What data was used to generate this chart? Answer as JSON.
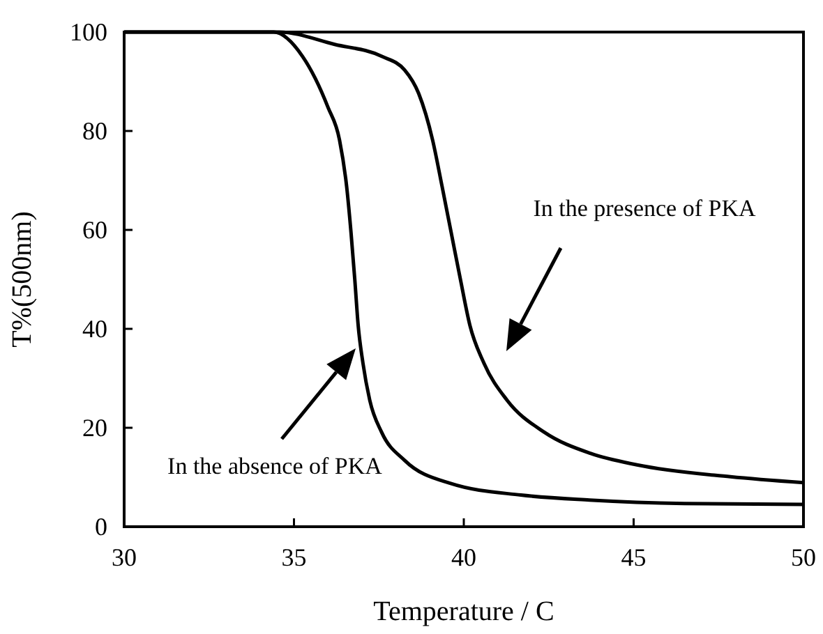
{
  "chart_data": {
    "type": "line",
    "xlabel": "Temperature / C",
    "ylabel": "T%(500nm)",
    "xlim": [
      30,
      50
    ],
    "xticks": [
      30,
      35,
      40,
      45,
      50
    ],
    "ylim": [
      0,
      100
    ],
    "yticks": [
      0,
      20,
      40,
      60,
      80,
      100
    ],
    "grid": false,
    "marker": "none",
    "line_style": "solid",
    "series": [
      {
        "color": "#000000",
        "x": [
          30,
          34.4,
          35.25,
          36.0,
          36.34,
          36.55,
          36.68,
          36.79,
          36.89,
          37.03,
          37.23,
          37.58,
          38.26,
          39.63,
          41.68,
          43.7,
          46.5,
          50
        ],
        "values": [
          100,
          100,
          95.1,
          84.8,
          78.2,
          68.8,
          59.4,
          50,
          40.7,
          33.1,
          25.6,
          19.1,
          13.4,
          8.7,
          6.4,
          5.4,
          4.7,
          4.5
        ]
      },
      {
        "color": "#000000",
        "x": [
          30,
          34.56,
          36.2,
          37.58,
          38.26,
          38.67,
          39.08,
          39.36,
          39.63,
          39.9,
          40.18,
          40.59,
          41.27,
          42.37,
          43.74,
          45.1,
          47.85,
          50
        ],
        "values": [
          100,
          100,
          97.5,
          95.1,
          92.3,
          87.6,
          78.2,
          68.8,
          59.4,
          50,
          40.7,
          33.1,
          25.6,
          19.1,
          14.8,
          12.5,
          10.1,
          8.9
        ]
      }
    ],
    "annotations": [
      "In the presence of PKA",
      "In the absence of PKA"
    ]
  }
}
